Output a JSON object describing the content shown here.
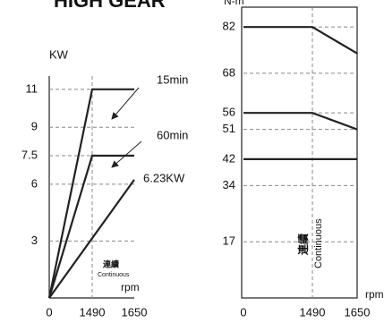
{
  "chart_data": [
    {
      "type": "line",
      "title": "HIGH GEAR",
      "y_label": "KW",
      "x_label": "rpm",
      "annotation": "連續",
      "annotation_sub": "Continuous",
      "xlim": [
        0,
        1650
      ],
      "xticks": [
        0,
        1490,
        1650
      ],
      "ylim": [
        0,
        11.7
      ],
      "yticks": [
        3,
        6,
        7.5,
        9,
        11
      ],
      "grid": true,
      "color": "#222222",
      "series": [
        {
          "name": "15min",
          "x": [
            0,
            1490,
            1650
          ],
          "values": [
            0,
            11,
            11
          ]
        },
        {
          "name": "60min",
          "x": [
            0,
            1490,
            1650
          ],
          "values": [
            0,
            7.5,
            7.5
          ]
        },
        {
          "name": "6.23KW",
          "x": [
            0,
            1650
          ],
          "values": [
            0,
            6.23
          ]
        }
      ]
    },
    {
      "type": "line",
      "y_label": "N-m",
      "x_label": "rpm",
      "annotation": "連續",
      "annotation_sub": "Continuous",
      "xlim": [
        0,
        1650
      ],
      "xticks": [
        0,
        1490,
        1650
      ],
      "ylim": [
        0,
        88
      ],
      "yticks": [
        17,
        34,
        42,
        51,
        56,
        68,
        82
      ],
      "grid": true,
      "color": "#222222",
      "series": [
        {
          "x": [
            0,
            1490,
            1650
          ],
          "values": [
            82,
            82,
            74
          ]
        },
        {
          "x": [
            0,
            1490,
            1650
          ],
          "values": [
            56,
            56,
            51
          ]
        },
        {
          "x": [
            0,
            1490,
            1650
          ],
          "values": [
            42,
            42,
            42
          ]
        }
      ]
    }
  ]
}
